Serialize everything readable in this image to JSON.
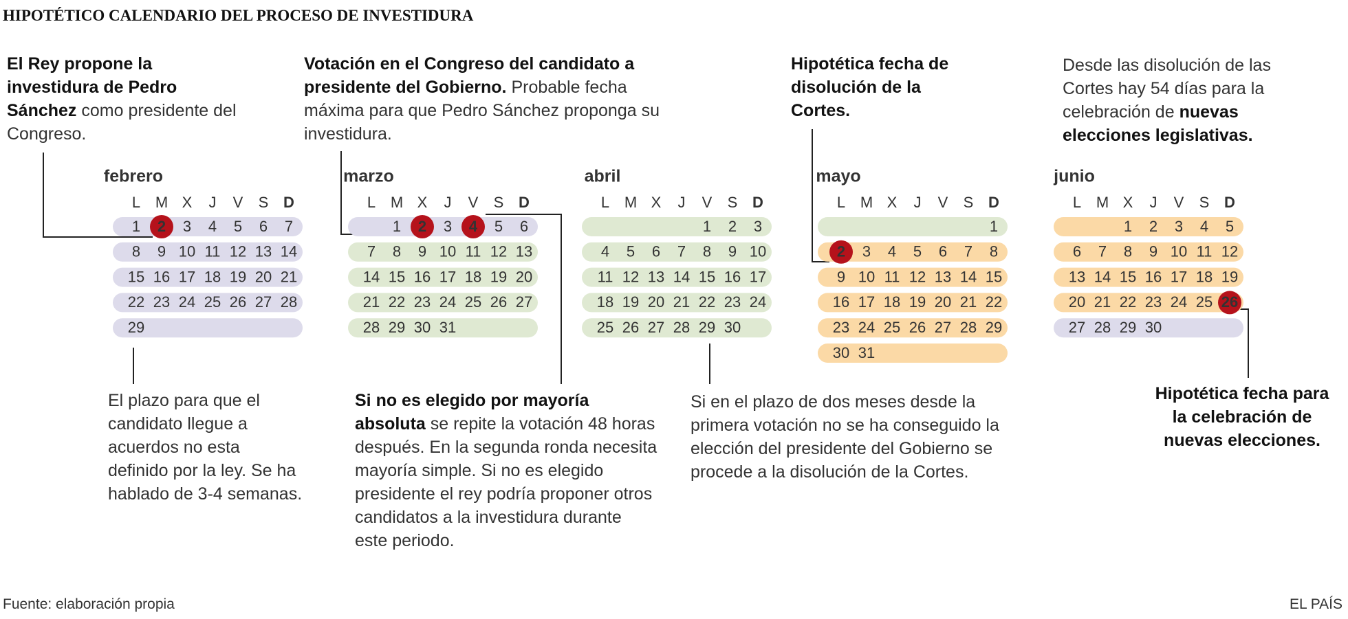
{
  "header": {
    "title": "HIPOTÉTICO CALENDARIO DEL PROCESO DE INVESTIDURA"
  },
  "weekdays": [
    "L",
    "M",
    "X",
    "J",
    "V",
    "S",
    "D"
  ],
  "months": [
    {
      "name": "febrero",
      "highlight": [
        2
      ],
      "weeks": [
        {
          "color": "#dddbeb",
          "days": [
            1,
            2,
            3,
            4,
            5,
            6,
            7
          ]
        },
        {
          "color": "#dddbeb",
          "days": [
            8,
            9,
            10,
            11,
            12,
            13,
            14
          ]
        },
        {
          "color": "#dddbeb",
          "days": [
            15,
            16,
            17,
            18,
            19,
            20,
            21
          ]
        },
        {
          "color": "#dddbeb",
          "days": [
            22,
            23,
            24,
            25,
            26,
            27,
            28
          ]
        },
        {
          "color": "#dddbeb",
          "days": [
            29
          ]
        }
      ]
    },
    {
      "name": "marzo",
      "highlight": [
        2,
        4
      ],
      "weeks": [
        {
          "color": "#dddbeb",
          "days": [
            null,
            1,
            2,
            3,
            4,
            5,
            6
          ]
        },
        {
          "color": "#dfe9d2",
          "days": [
            7,
            8,
            9,
            10,
            11,
            12,
            13
          ]
        },
        {
          "color": "#dfe9d2",
          "days": [
            14,
            15,
            16,
            17,
            18,
            19,
            20
          ]
        },
        {
          "color": "#dfe9d2",
          "days": [
            21,
            22,
            23,
            24,
            25,
            26,
            27
          ]
        },
        {
          "color": "#dfe9d2",
          "days": [
            28,
            29,
            30,
            31
          ]
        }
      ]
    },
    {
      "name": "abril",
      "highlight": [],
      "weeks": [
        {
          "color": "#dfe9d2",
          "days": [
            null,
            null,
            null,
            null,
            1,
            2,
            3
          ]
        },
        {
          "color": "#dfe9d2",
          "days": [
            4,
            5,
            6,
            7,
            8,
            9,
            10
          ]
        },
        {
          "color": "#dfe9d2",
          "days": [
            11,
            12,
            13,
            14,
            15,
            16,
            17
          ]
        },
        {
          "color": "#dfe9d2",
          "days": [
            18,
            19,
            20,
            21,
            22,
            23,
            24
          ]
        },
        {
          "color": "#dfe9d2",
          "days": [
            25,
            26,
            27,
            28,
            29,
            30
          ]
        }
      ]
    },
    {
      "name": "mayo",
      "highlight": [
        2
      ],
      "weeks": [
        {
          "color": "#dfe9d2",
          "days": [
            null,
            null,
            null,
            null,
            null,
            null,
            1
          ]
        },
        {
          "color": "#fbd9a6",
          "days": [
            2,
            3,
            4,
            5,
            6,
            7,
            8
          ]
        },
        {
          "color": "#fbd9a6",
          "days": [
            9,
            10,
            11,
            12,
            13,
            14,
            15
          ]
        },
        {
          "color": "#fbd9a6",
          "days": [
            16,
            17,
            18,
            19,
            20,
            21,
            22
          ]
        },
        {
          "color": "#fbd9a6",
          "days": [
            23,
            24,
            25,
            26,
            27,
            28,
            29
          ]
        },
        {
          "color": "#fbd9a6",
          "days": [
            30,
            31
          ]
        }
      ]
    },
    {
      "name": "junio",
      "highlight": [
        26
      ],
      "weeks": [
        {
          "color": "#fbd9a6",
          "days": [
            null,
            null,
            1,
            2,
            3,
            4,
            5
          ]
        },
        {
          "color": "#fbd9a6",
          "days": [
            6,
            7,
            8,
            9,
            10,
            11,
            12
          ]
        },
        {
          "color": "#fbd9a6",
          "days": [
            13,
            14,
            15,
            16,
            17,
            18,
            19
          ]
        },
        {
          "color": "#fbd9a6",
          "days": [
            20,
            21,
            22,
            23,
            24,
            25,
            26
          ]
        },
        {
          "color": "#dddbeb",
          "days": [
            27,
            28,
            29,
            30
          ]
        }
      ]
    }
  ],
  "annotations": [
    {
      "parts": [
        {
          "text": "El Rey propone la investidura de Pedro Sánchez",
          "bold": true
        },
        {
          "text": " como presidente del Congreso."
        }
      ]
    },
    {
      "parts": [
        {
          "text": "Votación en el Congreso del candidato a presidente del Gobierno.",
          "bold": true
        },
        {
          "text": " Probable fecha máxima para que Pedro Sánchez proponga su investidura."
        }
      ]
    },
    {
      "parts": [
        {
          "text": "Hipotética fecha de disolución de la Cortes.",
          "bold": true
        }
      ]
    },
    {
      "parts": [
        {
          "text": "Desde las disolución de las Cortes hay 54 días para la celebración de "
        },
        {
          "text": "nuevas elecciones legislativas.",
          "bold": true
        }
      ]
    },
    {
      "parts": [
        {
          "text": "El plazo para que el candidato llegue a acuerdos no esta definido por la ley. Se ha hablado de 3-4 semanas."
        }
      ]
    },
    {
      "parts": [
        {
          "text": "Si no es elegido por mayoría absoluta",
          "bold": true
        },
        {
          "text": " se repite la votación 48 horas después. En la segunda ronda necesita mayoría simple. Si no es elegido presidente el rey podría proponer otros candidatos a la investidura durante este periodo."
        }
      ]
    },
    {
      "parts": [
        {
          "text": "Si en el plazo de dos meses desde la primera votación no se ha conseguido la elección del presidente del Gobierno se procede a la disolución de  la Cortes."
        }
      ]
    },
    {
      "parts": [
        {
          "text": "Hipotética fecha para la celebración de nuevas elecciones.",
          "bold": true
        }
      ]
    }
  ],
  "footer": {
    "source": "Fuente: elaboración propia",
    "credit": "EL PAÍS"
  }
}
